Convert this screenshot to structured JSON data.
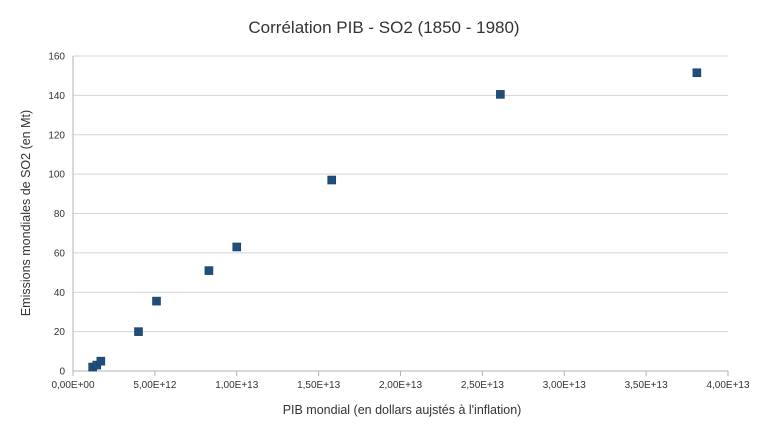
{
  "chart_data": {
    "type": "scatter",
    "title": "Corrélation PIB - SO2 (1850 - 1980)",
    "xlabel": "PIB mondial (en dollars aujstés à l'inflation)",
    "ylabel": "Emissions mondiales de SO2 (en Mt)",
    "xlim": [
      0,
      40000000000000
    ],
    "ylim": [
      0,
      160
    ],
    "x_ticks": [
      0,
      5000000000000,
      10000000000000,
      15000000000000,
      20000000000000,
      25000000000000,
      30000000000000,
      35000000000000,
      40000000000000
    ],
    "x_tick_labels": [
      "0,00E+00",
      "5,00E+12",
      "1,00E+13",
      "1,50E+13",
      "2,00E+13",
      "2,50E+13",
      "3,00E+13",
      "3,50E+13",
      "4,00E+13"
    ],
    "y_ticks": [
      0,
      20,
      40,
      60,
      80,
      100,
      120,
      140,
      160
    ],
    "y_tick_labels": [
      "0",
      "20",
      "40",
      "60",
      "80",
      "100",
      "120",
      "140",
      "160"
    ],
    "grid": true,
    "legend": "none",
    "marker_color": "#1f4e79",
    "series": [
      {
        "points": [
          {
            "x": 1200000000000,
            "y": 2
          },
          {
            "x": 1450000000000,
            "y": 3
          },
          {
            "x": 1700000000000,
            "y": 5
          },
          {
            "x": 4000000000000,
            "y": 20
          },
          {
            "x": 5100000000000,
            "y": 35.5
          },
          {
            "x": 8300000000000,
            "y": 51
          },
          {
            "x": 10000000000000,
            "y": 63
          },
          {
            "x": 15800000000000,
            "y": 97
          },
          {
            "x": 26100000000000,
            "y": 140.5
          },
          {
            "x": 38100000000000,
            "y": 151.5
          }
        ]
      }
    ]
  }
}
